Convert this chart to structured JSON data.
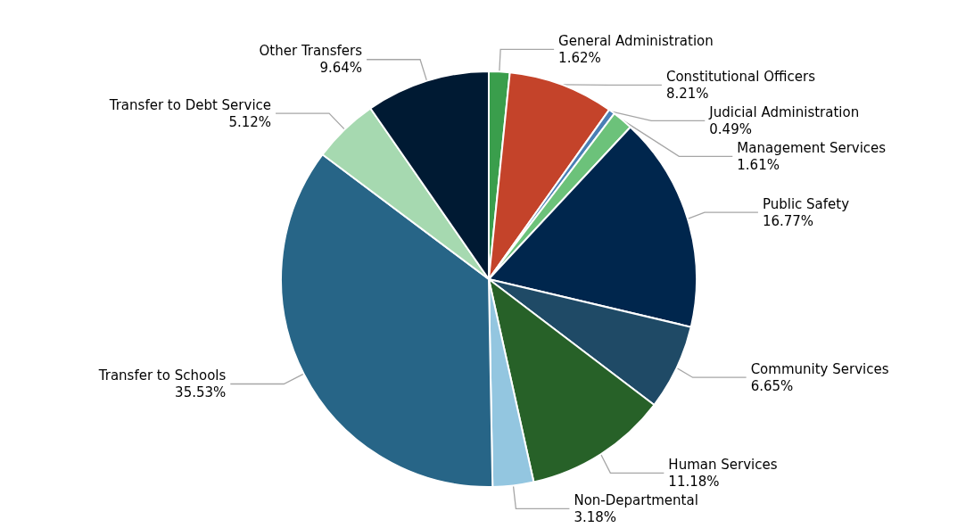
{
  "chart_data": {
    "type": "pie",
    "categories": [
      "General Administration",
      "Constitutional Officers",
      "Judicial Administration",
      "Management Services",
      "Public Safety",
      "Community Services",
      "Human Services",
      "Non-Departmental",
      "Transfer to Schools",
      "Transfer to Debt Service",
      "Other Transfers"
    ],
    "values": [
      1.62,
      8.21,
      0.49,
      1.61,
      16.77,
      6.65,
      11.18,
      3.18,
      35.53,
      5.12,
      9.64
    ],
    "colors": [
      "#3a9e4c",
      "#c4432a",
      "#4a7fb5",
      "#6cc27a",
      "#00264d",
      "#1f4a66",
      "#276128",
      "#93c6e0",
      "#276587",
      "#a6d9b0",
      "#001a33"
    ],
    "value_labels": [
      "1.62%",
      "8.21%",
      "0.49%",
      "1.61%",
      "16.77%",
      "6.65%",
      "11.18%",
      "3.18%",
      "35.53%",
      "5.12%",
      "9.64%"
    ],
    "legend": false
  }
}
